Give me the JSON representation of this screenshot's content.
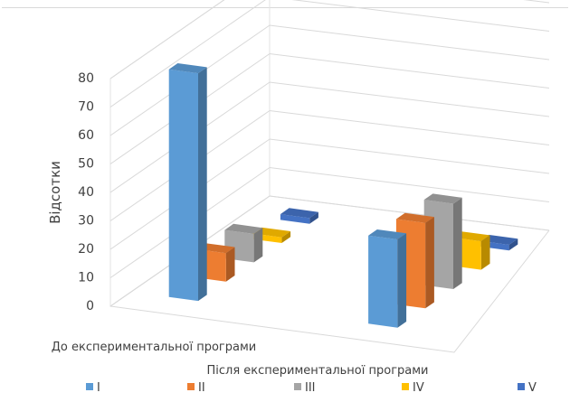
{
  "chart_data": {
    "type": "bar",
    "title": "",
    "ylabel": "Відсотки",
    "ylim": [
      0,
      80
    ],
    "yticks": [
      0,
      10,
      20,
      30,
      40,
      50,
      60,
      70,
      80
    ],
    "categories": [
      "До експериментальної програми",
      "Після експериментальної програми"
    ],
    "series": [
      {
        "name": "I",
        "values": [
          80,
          31
        ],
        "color": "#5b9bd5"
      },
      {
        "name": "II",
        "values": [
          10,
          30
        ],
        "color": "#ed7d31"
      },
      {
        "name": "III",
        "values": [
          10,
          30
        ],
        "color": "#a5a5a5"
      },
      {
        "name": "IV",
        "values": [
          2,
          10
        ],
        "color": "#ffc000"
      },
      {
        "name": "V",
        "values": [
          2,
          2
        ],
        "color": "#4472c4"
      }
    ],
    "grid": true,
    "legend": "bottom"
  }
}
